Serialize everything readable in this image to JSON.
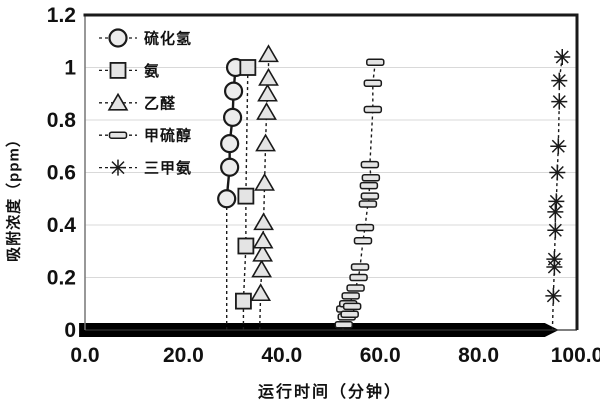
{
  "figure": {
    "background": "#ffffff"
  },
  "chart_data": {
    "type": "scatter",
    "title": "",
    "xlabel": "运行时间（分钟）",
    "ylabel": "吸附浓度（ppm）",
    "xlim": [
      0,
      100
    ],
    "ylim": [
      0,
      1.2
    ],
    "xtick_values": [
      0,
      20,
      40,
      60,
      80,
      100
    ],
    "xtick_labels": [
      "0.0",
      "20.0",
      "40.0",
      "60.0",
      "80.0",
      "100.0"
    ],
    "ytick_values": [
      0,
      0.2,
      0.4,
      0.6,
      0.8,
      1,
      1.2
    ],
    "ytick_labels": [
      "0",
      "0.2",
      "0.4",
      "0.6",
      "0.8",
      "1",
      "1.2"
    ],
    "grid": true,
    "legend_position": "top-left-inside",
    "colors": {
      "marker_fill": "#e4e4e4",
      "marker_stroke": "#1a1a1a",
      "line": "#1a1a1a",
      "grid": "#d9d9d9",
      "border": "#1a1a1a",
      "zero_band": "#000000"
    },
    "zero_band": {
      "y": 0,
      "x_start": -1.2,
      "x_end": 96.3
    },
    "series": [
      {
        "name": "硫化氢",
        "marker": "circle",
        "line_style": "dashed",
        "marker_line": "solid",
        "points": [
          [
            28.8,
            0
          ],
          [
            28.8,
            0.5
          ],
          [
            29.4,
            0.62
          ],
          [
            29.4,
            0.71
          ],
          [
            30.0,
            0.81
          ],
          [
            30.2,
            0.91
          ],
          [
            30.6,
            1.0
          ]
        ]
      },
      {
        "name": "氨",
        "marker": "square",
        "line_style": "dashed",
        "marker_line": "dashed",
        "points": [
          [
            32.2,
            0
          ],
          [
            32.2,
            0.11
          ],
          [
            32.7,
            0.32
          ],
          [
            32.7,
            0.51
          ],
          [
            33.1,
            1.0
          ]
        ]
      },
      {
        "name": "乙醛",
        "marker": "triangle",
        "line_style": "dashed",
        "marker_line": "dashed",
        "points": [
          [
            35.5,
            0
          ],
          [
            35.7,
            0.14
          ],
          [
            35.9,
            0.23
          ],
          [
            36.1,
            0.29
          ],
          [
            36.2,
            0.34
          ],
          [
            36.3,
            0.41
          ],
          [
            36.5,
            0.56
          ],
          [
            36.7,
            0.71
          ],
          [
            36.9,
            0.83
          ],
          [
            37.1,
            0.9
          ],
          [
            37.3,
            0.96
          ],
          [
            37.3,
            1.05
          ]
        ]
      },
      {
        "name": "甲硫醇",
        "marker": "hbar",
        "line_style": "dashed",
        "marker_line": "dashed",
        "points": [
          [
            52.4,
            0
          ],
          [
            52.6,
            0.02
          ],
          [
            53.2,
            0.05
          ],
          [
            52.9,
            0.08
          ],
          [
            53.8,
            0.06
          ],
          [
            53.5,
            0.1
          ],
          [
            54.3,
            0.09
          ],
          [
            54.0,
            0.13
          ],
          [
            55.0,
            0.16
          ],
          [
            55.6,
            0.2
          ],
          [
            55.9,
            0.24
          ],
          [
            56.5,
            0.34
          ],
          [
            56.9,
            0.39
          ],
          [
            57.5,
            0.48
          ],
          [
            57.9,
            0.51
          ],
          [
            57.7,
            0.55
          ],
          [
            58.1,
            0.58
          ],
          [
            57.9,
            0.63
          ],
          [
            58.5,
            0.84
          ],
          [
            58.5,
            0.94
          ],
          [
            59.0,
            1.02
          ]
        ]
      },
      {
        "name": "三甲氨",
        "marker": "asterisk",
        "line_style": "dashed",
        "marker_line": "dashed",
        "points": [
          [
            95.0,
            0
          ],
          [
            95.2,
            0.13
          ],
          [
            95.4,
            0.24
          ],
          [
            95.4,
            0.27
          ],
          [
            95.6,
            0.38
          ],
          [
            95.6,
            0.45
          ],
          [
            95.8,
            0.49
          ],
          [
            96.0,
            0.6
          ],
          [
            96.2,
            0.7
          ],
          [
            96.4,
            0.87
          ],
          [
            96.4,
            0.95
          ],
          [
            97.0,
            1.04
          ]
        ]
      }
    ]
  }
}
